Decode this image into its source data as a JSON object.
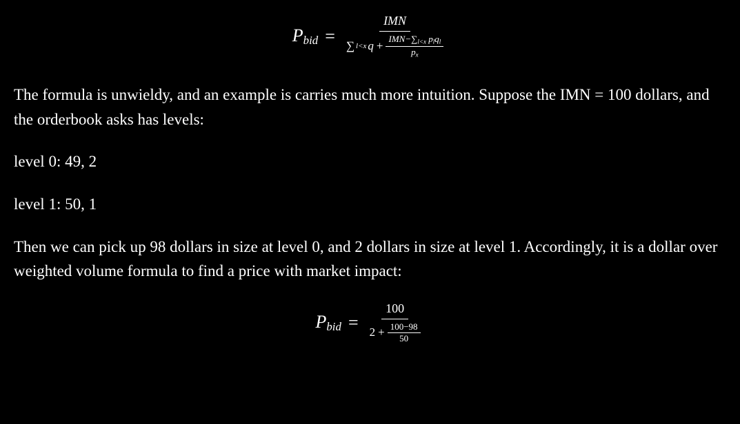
{
  "formula1": {
    "lhs_var": "P",
    "lhs_sub": "bid",
    "numerator": "IMN",
    "den_left_sigma": "∑",
    "den_left_sub": "l<x",
    "den_left_q": "q",
    "den_plus": "+",
    "inner_num_left": "IMN",
    "inner_num_minus": "−",
    "inner_num_sigma": "∑",
    "inner_num_sub": "l<x",
    "inner_num_tail": "p",
    "inner_num_tail_sub": "l",
    "inner_num_tail2": "q",
    "inner_num_tail2_sub": "l",
    "inner_den_var": "p",
    "inner_den_sub": "x"
  },
  "para1": "The formula is unwieldy, and an example is carries much more intuition. Suppose the IMN = 100 dollars, and the orderbook asks has levels:",
  "level0": "level 0: 49, 2",
  "level1": "level 1: 50, 1",
  "para2": "Then we can pick up 98 dollars in size at level 0, and 2 dollars in size at level 1. Accordingly, it is a dollar over weighted volume formula to find a price with market impact:",
  "formula2": {
    "lhs_var": "P",
    "lhs_sub": "bid",
    "numerator": "100",
    "den_left": "2",
    "den_plus": "+",
    "inner_num": "100−98",
    "inner_den": "50"
  }
}
